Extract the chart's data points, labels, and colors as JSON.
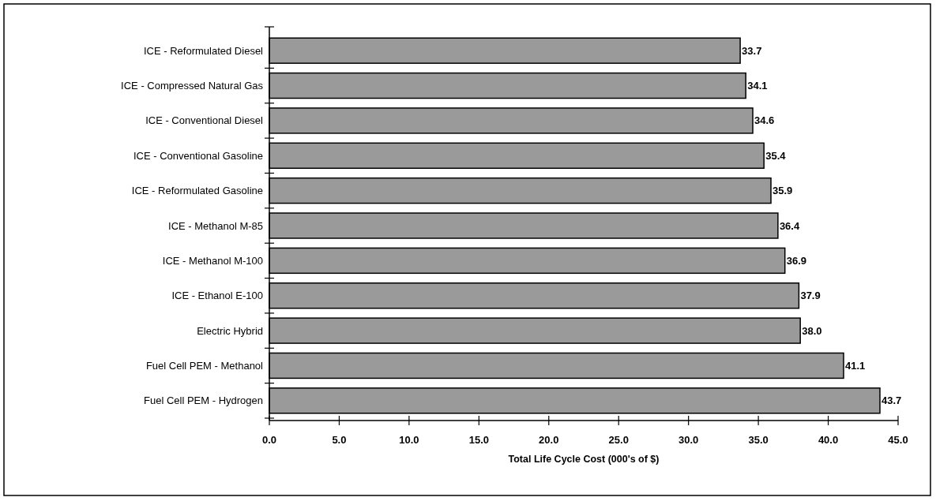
{
  "chart_data": {
    "type": "bar",
    "orientation": "horizontal",
    "xlabel": "Total Life Cycle Cost (000's of $)",
    "categories": [
      "ICE - Reformulated Diesel",
      "ICE - Compressed Natural Gas",
      "ICE - Conventional Diesel",
      "ICE - Conventional Gasoline",
      "ICE - Reformulated Gasoline",
      "ICE - Methanol M-85",
      "ICE - Methanol M-100",
      "ICE - Ethanol E-100",
      "Electric Hybrid",
      "Fuel Cell PEM - Methanol",
      "Fuel Cell PEM - Hydrogen"
    ],
    "values": [
      33.7,
      34.1,
      34.6,
      35.4,
      35.9,
      36.4,
      36.9,
      37.9,
      38.0,
      41.1,
      43.7
    ],
    "value_labels": [
      "33.7",
      "34.1",
      "34.6",
      "35.4",
      "35.9",
      "36.4",
      "36.9",
      "37.9",
      "38.0",
      "41.1",
      "43.7"
    ],
    "color": "#9a9a9a",
    "xlim": [
      0,
      45
    ],
    "xticks": [
      {
        "value": 0,
        "label": "0.0"
      },
      {
        "value": 5,
        "label": "5.0"
      },
      {
        "value": 10,
        "label": "10.0"
      },
      {
        "value": 15,
        "label": "15.0"
      },
      {
        "value": 20,
        "label": "20.0"
      },
      {
        "value": 25,
        "label": "25.0"
      },
      {
        "value": 30,
        "label": "30.0"
      },
      {
        "value": 35,
        "label": "35.0"
      },
      {
        "value": 40,
        "label": "40.0"
      },
      {
        "value": 45,
        "label": "45.0"
      }
    ],
    "grid": false
  }
}
